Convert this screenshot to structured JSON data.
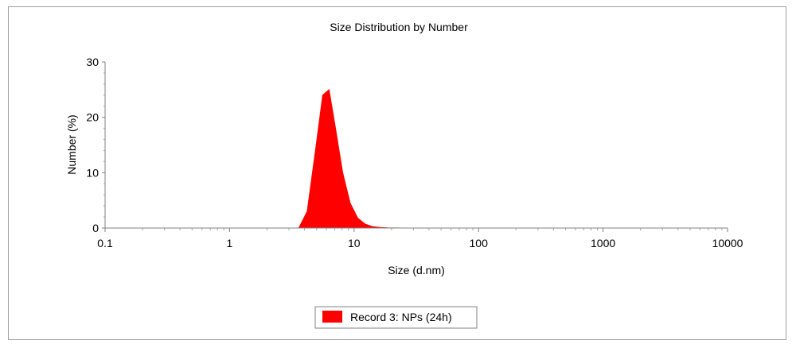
{
  "chart_data": {
    "type": "area",
    "title": "Size Distribution by Number",
    "xlabel": "Size (d.nm)",
    "ylabel": "Number (%)",
    "x_scale": "log",
    "xlim": [
      0.1,
      10000
    ],
    "ylim": [
      0,
      30
    ],
    "x_ticks": [
      "0.1",
      "1",
      "10",
      "100",
      "1000",
      "10000"
    ],
    "y_ticks": [
      "0",
      "10",
      "20",
      "30"
    ],
    "grid": false,
    "legend_position": "bottom-center",
    "series": [
      {
        "name": "Record 3: NPs (24h)",
        "color": "#ff0000",
        "x": [
          3.6,
          4.2,
          4.9,
          5.6,
          6.3,
          7.1,
          8.1,
          9.3,
          10.7,
          12.3,
          14.1,
          16.2,
          18.6,
          21.3,
          24.4
        ],
        "y": [
          0,
          3.0,
          14.0,
          24.0,
          25.0,
          18.0,
          10.0,
          4.5,
          1.8,
          0.7,
          0.25,
          0.1,
          0.03,
          0.01,
          0
        ]
      }
    ]
  }
}
